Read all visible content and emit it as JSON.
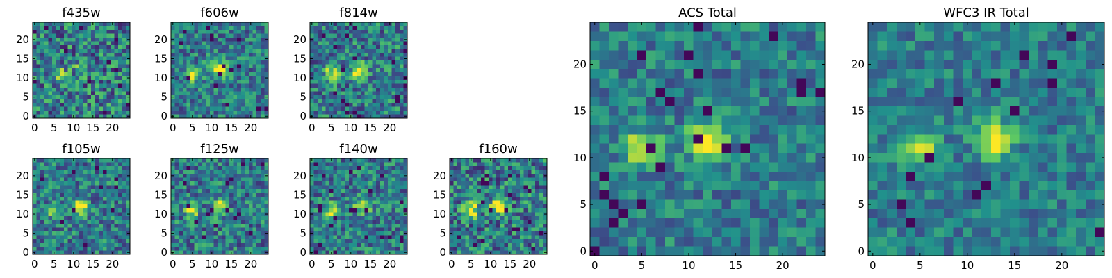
{
  "figure": {
    "description_type": "heatmap grid of image cutouts",
    "colormap": "viridis",
    "colors": [
      "#440154",
      "#3b528b",
      "#21918c",
      "#5ec962",
      "#fde725"
    ]
  },
  "chart_data": [
    {
      "type": "heatmap",
      "title": "f435w",
      "grid": [
        25,
        25
      ],
      "xlim": [
        0,
        24
      ],
      "ylim": [
        0,
        24
      ],
      "xticks": [
        "0",
        "5",
        "10",
        "15",
        "20"
      ],
      "yticks": [
        "0",
        "5",
        "10",
        "15",
        "20"
      ],
      "source_centers": [
        {
          "x": 6,
          "y": 11,
          "level": 0.55
        },
        {
          "x": 12,
          "y": 12,
          "level": 0.45
        }
      ],
      "noise": 0.32
    },
    {
      "type": "heatmap",
      "title": "f606w",
      "grid": [
        25,
        25
      ],
      "xlim": [
        0,
        24
      ],
      "ylim": [
        0,
        24
      ],
      "xticks": [
        "0",
        "5",
        "10",
        "15",
        "20"
      ],
      "yticks": [
        "0",
        "5",
        "10",
        "15",
        "20"
      ],
      "source_centers": [
        {
          "x": 5,
          "y": 11,
          "level": 0.75
        },
        {
          "x": 12,
          "y": 12,
          "level": 0.95
        }
      ],
      "noise": 0.25
    },
    {
      "type": "heatmap",
      "title": "f814w",
      "grid": [
        25,
        25
      ],
      "xlim": [
        0,
        24
      ],
      "ylim": [
        0,
        24
      ],
      "xticks": [
        "0",
        "5",
        "10",
        "15",
        "20"
      ],
      "yticks": [
        "0",
        "5",
        "10",
        "15",
        "20"
      ],
      "source_centers": [
        {
          "x": 5,
          "y": 11,
          "level": 0.7
        },
        {
          "x": 12,
          "y": 12,
          "level": 0.8
        }
      ],
      "noise": 0.28
    },
    {
      "type": "heatmap",
      "title": "f105w",
      "grid": [
        25,
        25
      ],
      "xlim": [
        0,
        24
      ],
      "ylim": [
        0,
        24
      ],
      "xticks": [
        "0",
        "5",
        "10",
        "15",
        "20"
      ],
      "yticks": [
        "0",
        "5",
        "10",
        "15",
        "20"
      ],
      "source_centers": [
        {
          "x": 5,
          "y": 11,
          "level": 0.55
        },
        {
          "x": 12,
          "y": 12,
          "level": 0.85
        }
      ],
      "noise": 0.26
    },
    {
      "type": "heatmap",
      "title": "f125w",
      "grid": [
        25,
        25
      ],
      "xlim": [
        0,
        24
      ],
      "ylim": [
        0,
        24
      ],
      "xticks": [
        "0",
        "5",
        "10",
        "15",
        "20"
      ],
      "yticks": [
        "0",
        "5",
        "10",
        "15",
        "20"
      ],
      "source_centers": [
        {
          "x": 5,
          "y": 11,
          "level": 0.7
        },
        {
          "x": 12,
          "y": 12,
          "level": 0.85
        }
      ],
      "noise": 0.27
    },
    {
      "type": "heatmap",
      "title": "f140w",
      "grid": [
        25,
        25
      ],
      "xlim": [
        0,
        24
      ],
      "ylim": [
        0,
        24
      ],
      "xticks": [
        "0",
        "5",
        "10",
        "15",
        "20"
      ],
      "yticks": [
        "0",
        "5",
        "10",
        "15",
        "20"
      ],
      "source_centers": [
        {
          "x": 5,
          "y": 11,
          "level": 0.7
        },
        {
          "x": 13,
          "y": 12,
          "level": 0.9
        }
      ],
      "noise": 0.26
    },
    {
      "type": "heatmap",
      "title": "f160w",
      "grid": [
        25,
        25
      ],
      "xlim": [
        0,
        24
      ],
      "ylim": [
        0,
        24
      ],
      "xticks": [
        "0",
        "5",
        "10",
        "15",
        "20"
      ],
      "yticks": [
        "0",
        "5",
        "10",
        "15",
        "20"
      ],
      "source_centers": [
        {
          "x": 5,
          "y": 11,
          "level": 0.8
        },
        {
          "x": 12,
          "y": 12,
          "level": 0.9
        }
      ],
      "noise": 0.3
    },
    {
      "type": "heatmap",
      "title": "ACS Total",
      "grid": [
        25,
        25
      ],
      "xlim": [
        0,
        24
      ],
      "ylim": [
        0,
        24
      ],
      "xticks": [
        "0",
        "5",
        "10",
        "15",
        "20"
      ],
      "yticks": [
        "0",
        "5",
        "10",
        "15",
        "20"
      ],
      "source_centers": [
        {
          "x": 5,
          "y": 11,
          "level": 0.85
        },
        {
          "x": 12,
          "y": 12,
          "level": 1.0
        }
      ],
      "noise": 0.2
    },
    {
      "type": "heatmap",
      "title": "WFC3 IR Total",
      "grid": [
        25,
        25
      ],
      "xlim": [
        0,
        24
      ],
      "ylim": [
        0,
        24
      ],
      "xticks": [
        "0",
        "5",
        "10",
        "15",
        "20"
      ],
      "yticks": [
        "0",
        "5",
        "10",
        "15",
        "20"
      ],
      "source_centers": [
        {
          "x": 5,
          "y": 11,
          "level": 0.75
        },
        {
          "x": 13,
          "y": 12,
          "level": 1.0
        }
      ],
      "noise": 0.18
    }
  ]
}
